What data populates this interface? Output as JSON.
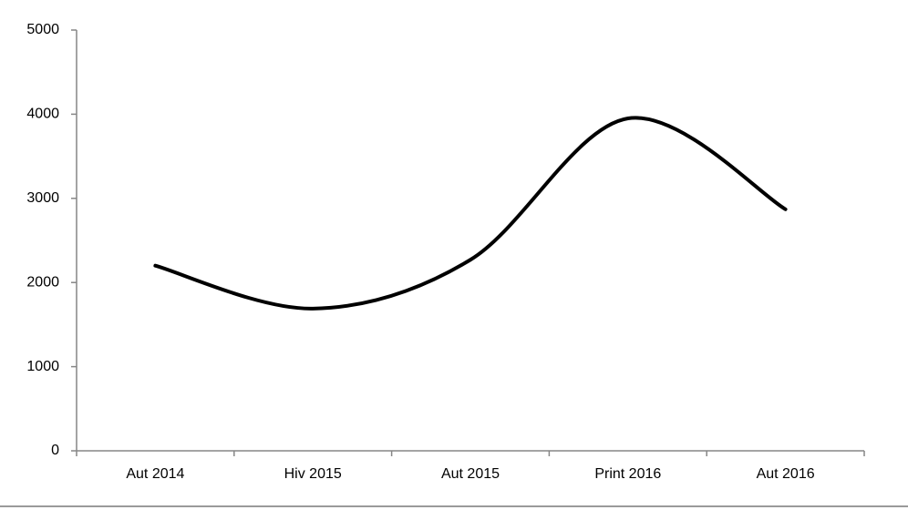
{
  "chart_data": {
    "type": "line",
    "smooth": true,
    "categories": [
      "Aut 2014",
      "Hiv 2015",
      "Aut 2015",
      "Print 2016",
      "Aut 2016"
    ],
    "values": [
      2200,
      1690,
      2270,
      3950,
      2870
    ],
    "color": "#000000",
    "ylim": [
      0,
      5000
    ],
    "yticks": [
      0,
      1000,
      2000,
      3000,
      4000,
      5000
    ],
    "grid": false
  }
}
